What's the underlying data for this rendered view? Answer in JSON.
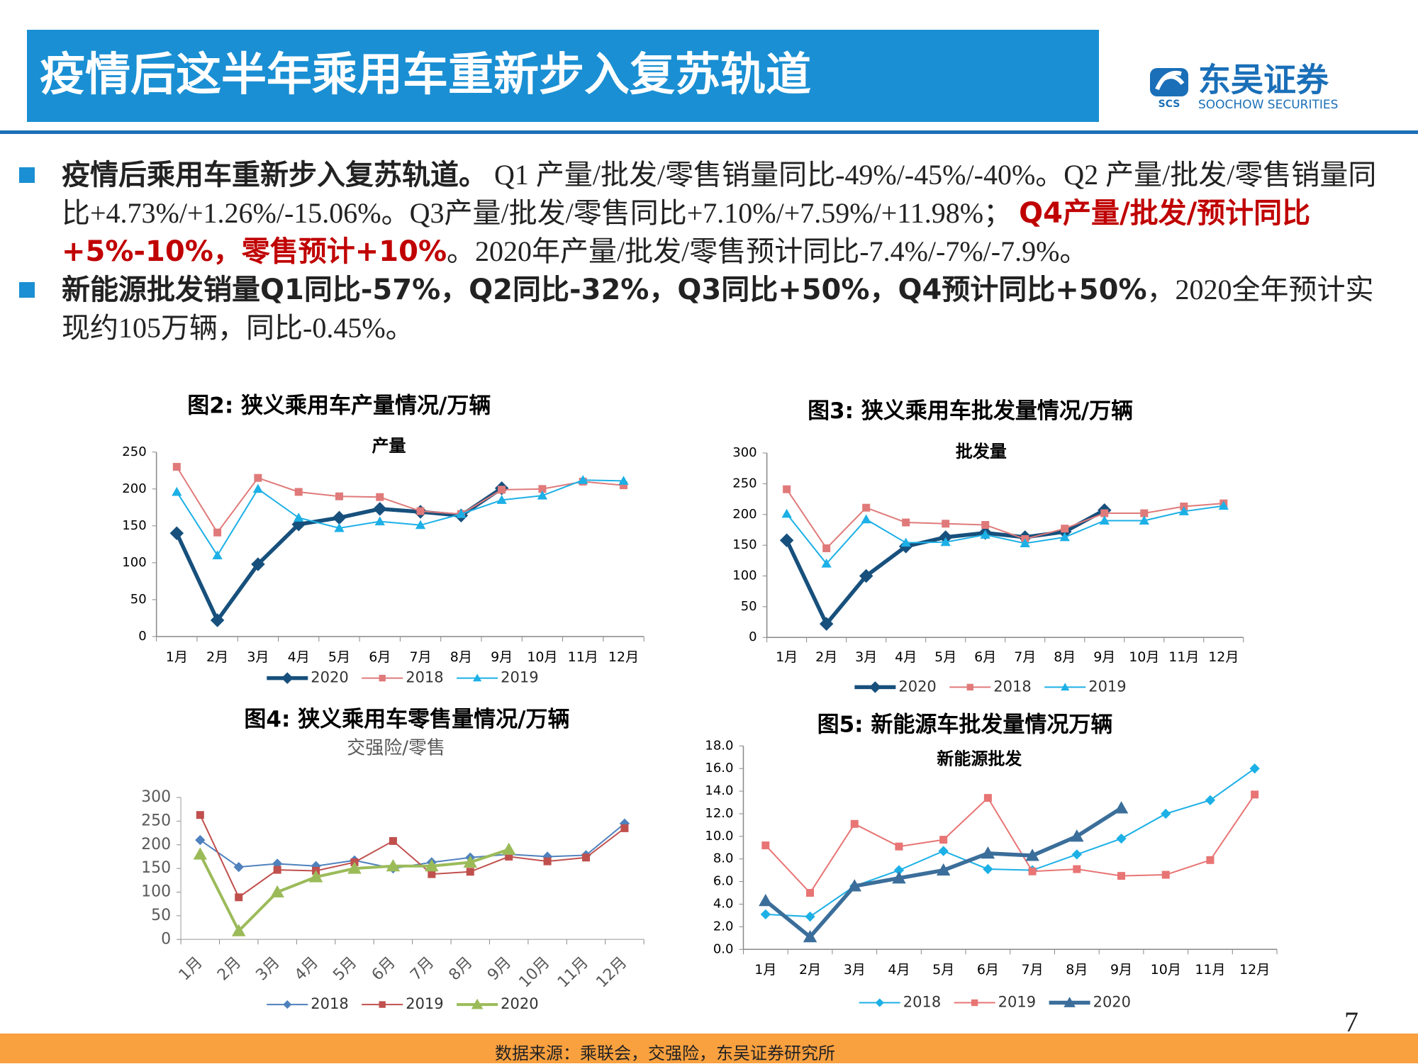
{
  "header": {
    "title": "疫情后这半年乘用车重新步入复苏轨道",
    "logo_name": "东吴证券",
    "logo_english": "SOOCHOW SECURITIES",
    "logo_mark": "SCS"
  },
  "bullets": [
    {
      "runs": [
        {
          "style": "bold",
          "text": "疫情后乘用车重新步入复苏轨道。"
        },
        {
          "style": "normal",
          "text": " Q1 产量/批发/零售销量同比-49%/-45%/-40%。Q2 产量/批发/零售销量同比+4.73%/+1.26%/-15.06%。Q3产量/批发/零售同比+7.10%/+7.59%/+11.98%； "
        },
        {
          "style": "red",
          "text": "Q4产量/批发/预计同比+5%-10%，零售预计+10%"
        },
        {
          "style": "normal",
          "text": "。2020年产量/批发/零售预计同比-7.4%/-7%/-7.9%。"
        }
      ]
    },
    {
      "runs": [
        {
          "style": "bold",
          "text": "新能源批发销量Q1同比-57%，Q2同比-32%，Q3同比+50%，Q4预计同比+50%"
        },
        {
          "style": "normal",
          "text": "，2020全年预计实现约105万辆，同比-0.45%。"
        }
      ]
    }
  ],
  "chart_data": [
    {
      "type": "line",
      "title": "图2:  狭义乘用车产量情况/万辆",
      "subtitle": "产量",
      "categories": [
        "1月",
        "2月",
        "3月",
        "4月",
        "5月",
        "6月",
        "7月",
        "8月",
        "9月",
        "10月",
        "11月",
        "12月"
      ],
      "series": [
        {
          "name": "2020",
          "color": "#17507c",
          "marker": "diamond",
          "values": [
            140,
            22,
            98,
            152,
            161,
            173,
            169,
            164,
            201,
            null,
            null,
            null
          ]
        },
        {
          "name": "2018",
          "color": "#e07a7a",
          "marker": "square",
          "values": [
            230,
            141,
            215,
            196,
            190,
            189,
            170,
            166,
            199,
            200,
            210,
            205
          ]
        },
        {
          "name": "2019",
          "color": "#1cb0e6",
          "marker": "triangle",
          "values": [
            196,
            110,
            200,
            161,
            147,
            156,
            151,
            166,
            185,
            191,
            212,
            211
          ]
        }
      ],
      "ylim": [
        0,
        250
      ],
      "yticks": [
        0,
        50,
        100,
        150,
        200,
        250
      ]
    },
    {
      "type": "line",
      "title": "图3:  狭义乘用车批发量情况/万辆",
      "subtitle": "批发量",
      "categories": [
        "1月",
        "2月",
        "3月",
        "4月",
        "5月",
        "6月",
        "7月",
        "8月",
        "9月",
        "10月",
        "11月",
        "12月"
      ],
      "series": [
        {
          "name": "2020",
          "color": "#17507c",
          "marker": "diamond",
          "values": [
            158,
            22,
            100,
            148,
            163,
            170,
            163,
            172,
            207,
            null,
            null,
            null
          ]
        },
        {
          "name": "2018",
          "color": "#e07a7a",
          "marker": "square",
          "values": [
            241,
            145,
            211,
            187,
            185,
            183,
            160,
            177,
            202,
            202,
            213,
            218
          ]
        },
        {
          "name": "2019",
          "color": "#1cb0e6",
          "marker": "triangle",
          "values": [
            201,
            120,
            192,
            154,
            155,
            167,
            153,
            163,
            190,
            190,
            205,
            214
          ]
        }
      ],
      "ylim": [
        0,
        300
      ],
      "yticks": [
        0,
        50,
        100,
        150,
        200,
        250,
        300
      ]
    },
    {
      "type": "line",
      "title": "图4:  狭义乘用车零售量情况/万辆",
      "subtitle": "交强险/零售",
      "categories": [
        "1月",
        "2月",
        "3月",
        "4月",
        "5月",
        "6月",
        "7月",
        "8月",
        "9月",
        "10月",
        "11月",
        "12月"
      ],
      "series": [
        {
          "name": "2018",
          "color": "#4f81bd",
          "marker": "diamond",
          "values": [
            210,
            153,
            160,
            155,
            167,
            150,
            163,
            173,
            180,
            175,
            178,
            245
          ]
        },
        {
          "name": "2019",
          "color": "#c0504d",
          "marker": "square",
          "values": [
            263,
            89,
            147,
            145,
            163,
            208,
            138,
            143,
            175,
            165,
            173,
            235
          ]
        },
        {
          "name": "2020",
          "color": "#9bbb59",
          "marker": "triangle",
          "values": [
            180,
            18,
            100,
            132,
            150,
            155,
            155,
            163,
            190,
            null,
            null,
            null
          ]
        }
      ],
      "ylim": [
        0,
        300
      ],
      "yticks": [
        0,
        50,
        100,
        150,
        200,
        250,
        300
      ]
    },
    {
      "type": "line",
      "title": "图5:  新能源车批发量情况万辆",
      "subtitle": "新能源批发",
      "categories": [
        "1月",
        "2月",
        "3月",
        "4月",
        "5月",
        "6月",
        "7月",
        "8月",
        "9月",
        "10月",
        "11月",
        "12月"
      ],
      "series": [
        {
          "name": "2018",
          "color": "#1cb0e6",
          "marker": "diamond",
          "values": [
            3.1,
            2.9,
            5.6,
            7.0,
            8.7,
            7.1,
            7.0,
            8.4,
            9.8,
            12.0,
            13.2,
            16.0
          ]
        },
        {
          "name": "2019",
          "color": "#e87474",
          "marker": "square",
          "values": [
            9.2,
            5.0,
            11.1,
            9.1,
            9.7,
            13.4,
            6.9,
            7.1,
            6.5,
            6.6,
            7.9,
            13.7
          ]
        },
        {
          "name": "2020",
          "color": "#3b6e9a",
          "marker": "triangle",
          "values": [
            4.3,
            1.1,
            5.6,
            6.3,
            7.0,
            8.5,
            8.3,
            10.0,
            12.5,
            null,
            null,
            null
          ]
        }
      ],
      "ylim": [
        0,
        18
      ],
      "yticks": [
        {
          "value": 0,
          "label": "0.0"
        },
        {
          "value": 2,
          "label": "2.0"
        },
        {
          "value": 4,
          "label": "4.0"
        },
        {
          "value": 6,
          "label": "6.0"
        },
        {
          "value": 8,
          "label": "8.0"
        },
        {
          "value": 10,
          "label": "10.0"
        },
        {
          "value": 12,
          "label": "12.0"
        },
        {
          "value": 14,
          "label": "14.0"
        },
        {
          "value": 16,
          "label": "16.0"
        },
        {
          "value": 18,
          "label": "18.0"
        }
      ]
    }
  ],
  "footer": {
    "source": "数据来源：乘联会，交强险，东吴证券研究所",
    "page": "7"
  }
}
